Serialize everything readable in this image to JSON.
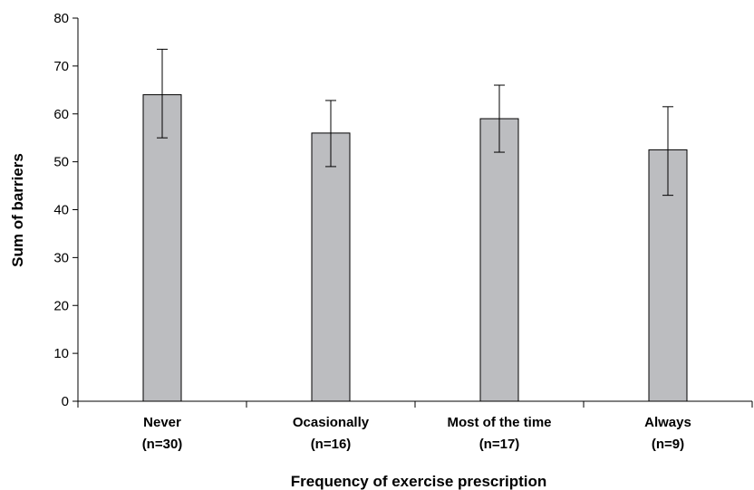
{
  "chart_data": {
    "type": "bar",
    "title": "",
    "xlabel": "Frequency of exercise prescription",
    "ylabel": "Sum of barriers",
    "ylim": [
      0,
      80
    ],
    "yticks": [
      0,
      10,
      20,
      30,
      40,
      50,
      60,
      70,
      80
    ],
    "categories": [
      "Never",
      "Ocasionally",
      "Most of the time",
      "Always"
    ],
    "category_n": [
      "(n=30)",
      "(n=16)",
      "(n=17)",
      "(n=9)"
    ],
    "values": [
      64,
      56,
      59,
      52.5
    ],
    "error_low": [
      55,
      49,
      52,
      43
    ],
    "error_high": [
      73.5,
      62.8,
      66,
      61.5
    ],
    "grid": false,
    "bar_color": "#bcbdc0"
  }
}
